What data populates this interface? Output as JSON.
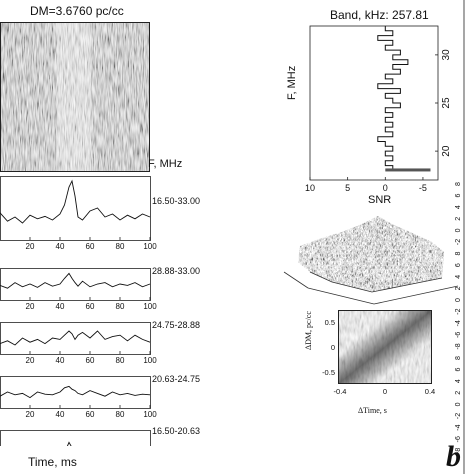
{
  "left_panel": {
    "dm_label": "DM=3.6760 pc/cc",
    "freq_header": "F, MHz",
    "x_axis_label": "Time, ms",
    "x_ticks": [
      "20",
      "40",
      "60",
      "80",
      "100"
    ],
    "panel_bands": [
      "16.50-33.00",
      "28.88-33.00",
      "24.75-28.88",
      "20.63-24.75",
      "16.50-20.63"
    ]
  },
  "right_panel": {
    "band_title": "Band, kHz: 257.81",
    "freq_axis_label": "F, MHz",
    "freq_ticks": [
      "30",
      "25",
      "20"
    ],
    "snr_label": "SNR",
    "snr_ticks": [
      "10",
      "5",
      "0",
      "-5"
    ],
    "inset_y_label": "ΔDM, pc/cc",
    "inset_x_label": "ΔTime, s",
    "inset_y_ticks": [
      "0.5",
      "0",
      "-0.5"
    ],
    "inset_x_ticks": [
      "-0.4",
      "0",
      "0.4"
    ],
    "edge_ticks": [
      "8",
      "6",
      "4",
      "2",
      "0",
      "-2",
      "8",
      "6",
      "4",
      "2",
      "0",
      "-2",
      "-4",
      "-6",
      "-8",
      "8",
      "6",
      "4",
      "2",
      "0",
      "-2",
      "-4",
      "-6",
      "-8"
    ],
    "corner_letter": "b"
  },
  "chart_data": [
    {
      "type": "line",
      "title": "DM=3.6760 pc/cc",
      "xlabel": "Time, ms",
      "xlim": [
        0,
        100
      ],
      "series": [
        {
          "name": "16.50-33.00",
          "x": [
            0,
            5,
            10,
            15,
            20,
            25,
            30,
            35,
            40,
            43,
            46,
            48,
            50,
            52,
            55,
            60,
            65,
            70,
            75,
            80,
            85,
            90,
            95,
            100
          ],
          "values": [
            0.42,
            0.28,
            0.35,
            0.25,
            0.38,
            0.32,
            0.36,
            0.3,
            0.4,
            0.55,
            0.85,
            0.95,
            0.7,
            0.35,
            0.3,
            0.45,
            0.5,
            0.35,
            0.4,
            0.3,
            0.38,
            0.32,
            0.4,
            0.35
          ]
        },
        {
          "name": "28.88-33.00",
          "x": [
            0,
            5,
            10,
            15,
            20,
            25,
            30,
            35,
            40,
            43,
            46,
            48,
            50,
            52,
            55,
            60,
            65,
            70,
            75,
            80,
            85,
            90,
            95,
            100
          ],
          "values": [
            0.45,
            0.35,
            0.55,
            0.4,
            0.5,
            0.38,
            0.55,
            0.42,
            0.5,
            0.7,
            0.88,
            0.7,
            0.55,
            0.42,
            0.6,
            0.4,
            0.5,
            0.55,
            0.4,
            0.5,
            0.45,
            0.55,
            0.4,
            0.5
          ]
        },
        {
          "name": "24.75-28.88",
          "x": [
            0,
            5,
            10,
            15,
            20,
            25,
            30,
            35,
            40,
            43,
            46,
            48,
            50,
            52,
            55,
            60,
            65,
            70,
            75,
            80,
            85,
            90,
            95,
            100
          ],
          "values": [
            0.3,
            0.4,
            0.25,
            0.5,
            0.35,
            0.45,
            0.3,
            0.5,
            0.45,
            0.6,
            0.75,
            0.65,
            0.45,
            0.6,
            0.7,
            0.5,
            0.75,
            0.45,
            0.55,
            0.6,
            0.4,
            0.6,
            0.45,
            0.35
          ]
        },
        {
          "name": "20.63-24.75",
          "x": [
            0,
            5,
            10,
            15,
            20,
            25,
            30,
            35,
            40,
            43,
            46,
            48,
            50,
            52,
            55,
            60,
            65,
            70,
            75,
            80,
            85,
            90,
            95,
            100
          ],
          "values": [
            0.35,
            0.5,
            0.4,
            0.45,
            0.3,
            0.5,
            0.42,
            0.4,
            0.5,
            0.65,
            0.7,
            0.6,
            0.55,
            0.45,
            0.4,
            0.55,
            0.45,
            0.35,
            0.5,
            0.4,
            0.45,
            0.38,
            0.42,
            0.4
          ]
        },
        {
          "name": "16.50-20.63",
          "x": [
            0,
            5,
            10,
            15,
            20,
            25,
            30,
            35,
            40,
            43,
            46,
            48,
            50,
            52,
            55,
            60,
            65,
            70,
            75,
            80,
            85,
            90,
            95,
            100
          ],
          "values": [
            0.35,
            0.3,
            0.4,
            0.3,
            0.38,
            0.35,
            0.42,
            0.38,
            0.5,
            0.6,
            0.8,
            0.7,
            0.5,
            0.4,
            0.38,
            0.42,
            0.35,
            0.45,
            0.35,
            0.4,
            0.32,
            0.38,
            0.35,
            0.3
          ]
        }
      ]
    },
    {
      "type": "line",
      "title": "Band, kHz: 257.81",
      "xlabel": "SNR",
      "ylabel": "F, MHz",
      "xlim": [
        10,
        -7
      ],
      "ylim": [
        17,
        33
      ],
      "series": [
        {
          "x": [
            0,
            -1,
            1,
            -1,
            0,
            -2,
            -1,
            -3,
            -1,
            -2,
            0,
            -1,
            1,
            -2,
            0,
            -1,
            -2,
            0,
            -1,
            0,
            -1,
            0,
            -1,
            1,
            0,
            -1,
            0,
            -1,
            0,
            -1
          ],
          "values": [
            33,
            32.5,
            32,
            31.5,
            31,
            30.5,
            30,
            29.5,
            29,
            28.5,
            28,
            27.5,
            27,
            26.5,
            26,
            25.5,
            25,
            24.5,
            24,
            23.5,
            23,
            22.5,
            22,
            21.5,
            21,
            20.5,
            20,
            19.5,
            19,
            18.5
          ]
        }
      ]
    }
  ]
}
